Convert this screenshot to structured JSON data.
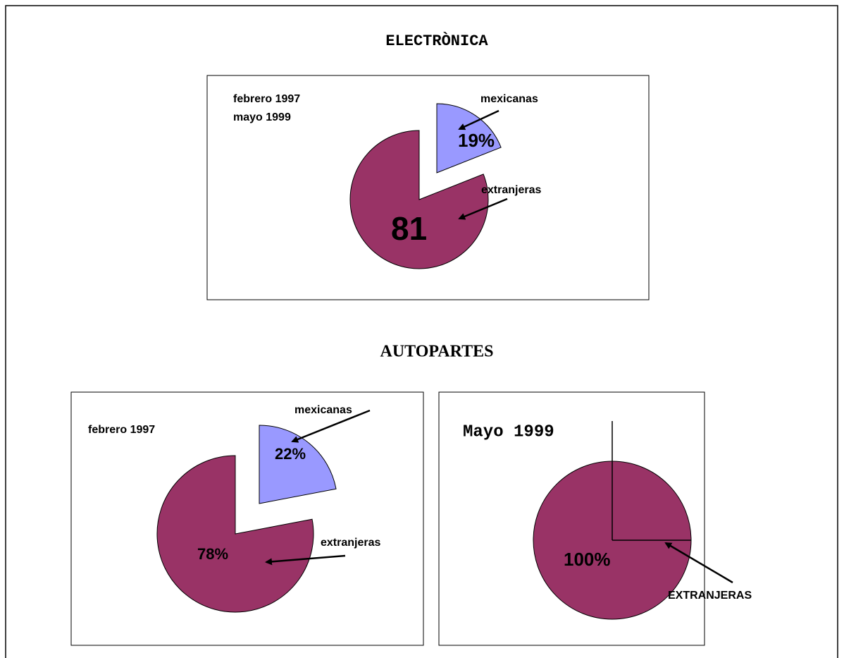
{
  "headings": [
    "ELECTRÒNICA",
    "AUTOPARTES"
  ],
  "chart_data": [
    {
      "type": "pie",
      "title_lines": [
        "febrero 1997",
        "mayo 1999"
      ],
      "categories": [
        "mexicanas",
        "extranjeras"
      ],
      "values": [
        19,
        81
      ],
      "value_labels": [
        "19%",
        "81"
      ],
      "colors": [
        "#9999ff",
        "#993366"
      ]
    },
    {
      "type": "pie",
      "title_lines": [
        "febrero 1997"
      ],
      "categories": [
        "mexicanas",
        "extranjeras"
      ],
      "values": [
        22,
        78
      ],
      "value_labels": [
        "22%",
        "78%"
      ],
      "colors": [
        "#9999ff",
        "#993366"
      ]
    },
    {
      "type": "pie",
      "title_lines": [
        "Mayo 1999"
      ],
      "categories": [
        "EXTRANJERAS"
      ],
      "values": [
        100
      ],
      "value_labels": [
        "100%"
      ],
      "colors": [
        "#993366"
      ]
    }
  ]
}
